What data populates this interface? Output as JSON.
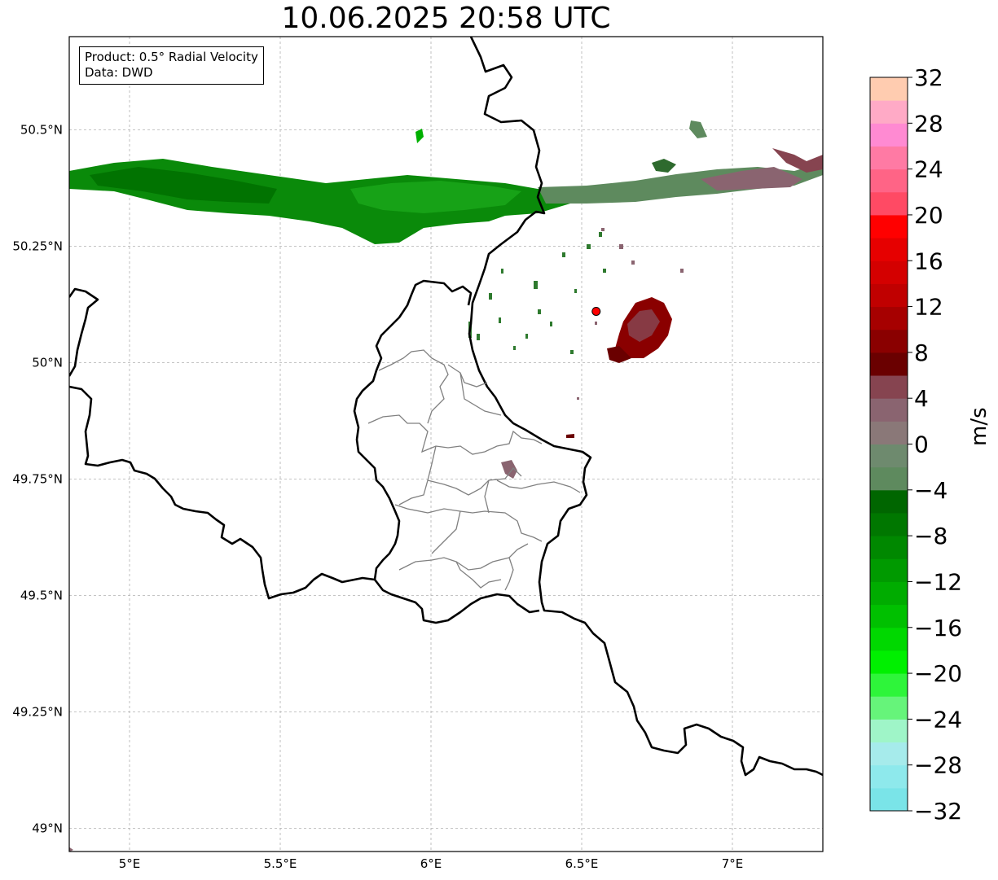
{
  "title": "10.06.2025 20:58 UTC",
  "info_box": {
    "product": "Product: 0.5° Radial Velocity",
    "data": "Data: DWD"
  },
  "map": {
    "extent_lon": [
      4.8,
      7.3
    ],
    "extent_lat": [
      48.95,
      50.7
    ],
    "lon_ticks": [
      {
        "value": 5.0,
        "label": "5°E"
      },
      {
        "value": 5.5,
        "label": "5.5°E"
      },
      {
        "value": 6.0,
        "label": "6°E"
      },
      {
        "value": 6.5,
        "label": "6.5°E"
      },
      {
        "value": 7.0,
        "label": "7°E"
      }
    ],
    "lat_ticks": [
      {
        "value": 49.0,
        "label": "49°N"
      },
      {
        "value": 49.25,
        "label": "49.25°N"
      },
      {
        "value": 49.5,
        "label": "49.5°N"
      },
      {
        "value": 49.75,
        "label": "49.75°N"
      },
      {
        "value": 50.0,
        "label": "50°N"
      },
      {
        "value": 50.25,
        "label": "50.25°N"
      },
      {
        "value": 50.5,
        "label": "50.5°N"
      }
    ],
    "gridlines": true,
    "radar_site": {
      "lon": 6.548,
      "lat": 50.11,
      "color": "#ff0000"
    }
  },
  "colorbar": {
    "unit": "m/s",
    "min": -32,
    "max": 32,
    "ticks": [
      -32,
      -28,
      -24,
      -20,
      -16,
      -12,
      -8,
      -4,
      0,
      4,
      8,
      12,
      16,
      20,
      24,
      28,
      32
    ],
    "tick_labels": [
      "−32",
      "−28",
      "−24",
      "−20",
      "−16",
      "−12",
      "−8",
      "−4",
      "0",
      "4",
      "8",
      "12",
      "16",
      "20",
      "24",
      "28",
      "32"
    ],
    "colors": [
      "#7ae4e8",
      "#8ee9ec",
      "#a6ebeb",
      "#9ff5c8",
      "#66f47a",
      "#2ef53a",
      "#00f000",
      "#00d800",
      "#00c000",
      "#00ac00",
      "#009a00",
      "#008800",
      "#007700",
      "#006600",
      "#5e8a5e",
      "#6e8a6e",
      "#8a7878",
      "#8a6470",
      "#864450",
      "#6a0000",
      "#8a0000",
      "#a60000",
      "#c00000",
      "#d40000",
      "#e60000",
      "#ff0000",
      "#ff4a64",
      "#ff6486",
      "#ff7aa4",
      "#ff8ad2",
      "#ffaac6",
      "#ffccb0"
    ]
  }
}
